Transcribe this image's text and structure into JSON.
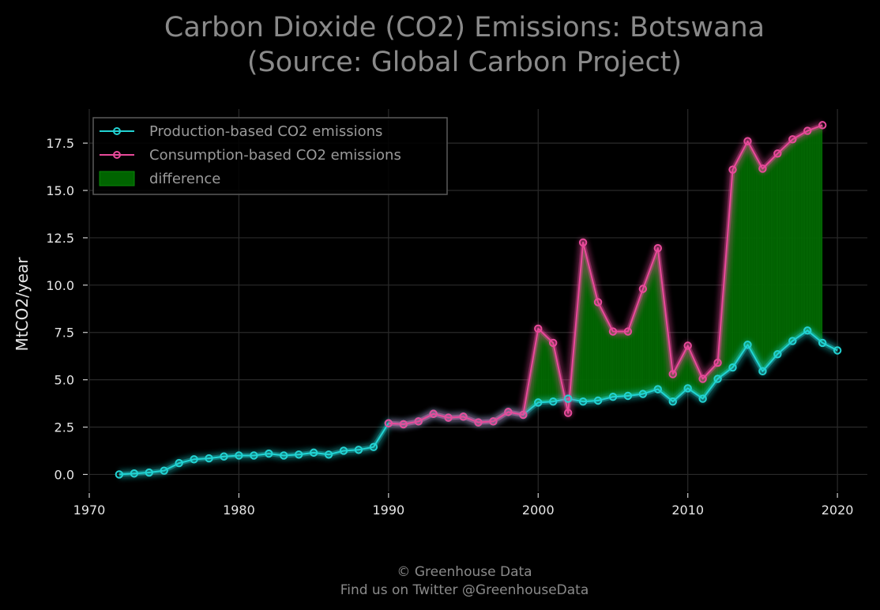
{
  "chart_data": {
    "type": "line",
    "title_line1": "Carbon Dioxide (CO2) Emissions: Botswana",
    "title_line2": "(Source: Global Carbon Project)",
    "xlabel": "",
    "ylabel": "MtCO2/year",
    "xlim": [
      1970,
      2022
    ],
    "ylim": [
      -0.9,
      19.3
    ],
    "xticks": [
      1970,
      1980,
      1990,
      2000,
      2010,
      2020
    ],
    "yticks": [
      0.0,
      2.5,
      5.0,
      7.5,
      10.0,
      12.5,
      15.0,
      17.5
    ],
    "grid": true,
    "legend_position": "top-left",
    "legend": [
      "Production-based CO2 emissions",
      "Consumption-based CO2 emissions",
      "difference"
    ],
    "series": [
      {
        "name": "Production-based CO2 emissions",
        "color": "#22d3d3",
        "x": [
          1972,
          1973,
          1974,
          1975,
          1976,
          1977,
          1978,
          1979,
          1980,
          1981,
          1982,
          1983,
          1984,
          1985,
          1986,
          1987,
          1988,
          1989,
          1990,
          1991,
          1992,
          1993,
          1994,
          1995,
          1996,
          1997,
          1998,
          1999,
          2000,
          2001,
          2002,
          2003,
          2004,
          2005,
          2006,
          2007,
          2008,
          2009,
          2010,
          2011,
          2012,
          2013,
          2014,
          2015,
          2016,
          2017,
          2018,
          2019,
          2020
        ],
        "values": [
          0.0,
          0.05,
          0.1,
          0.2,
          0.6,
          0.8,
          0.85,
          0.95,
          1.0,
          1.0,
          1.1,
          1.0,
          1.05,
          1.15,
          1.05,
          1.25,
          1.3,
          1.45,
          2.7,
          2.65,
          2.8,
          3.2,
          3.0,
          3.05,
          2.75,
          2.8,
          3.3,
          3.15,
          3.8,
          3.85,
          4.0,
          3.85,
          3.9,
          4.1,
          4.15,
          4.25,
          4.5,
          3.85,
          4.55,
          4.0,
          5.05,
          5.65,
          6.85,
          5.45,
          6.35,
          7.05,
          7.6,
          6.95,
          6.55
        ]
      },
      {
        "name": "Consumption-based CO2 emissions",
        "color": "#e84a9a",
        "x": [
          1990,
          1991,
          1992,
          1993,
          1994,
          1995,
          1996,
          1997,
          1998,
          1999,
          2000,
          2001,
          2002,
          2003,
          2004,
          2005,
          2006,
          2007,
          2008,
          2009,
          2010,
          2011,
          2012,
          2013,
          2014,
          2015,
          2016,
          2017,
          2018,
          2019
        ],
        "values": [
          2.7,
          2.65,
          2.8,
          3.2,
          3.0,
          3.05,
          2.75,
          2.8,
          3.3,
          3.15,
          7.7,
          6.95,
          3.25,
          12.25,
          9.1,
          7.55,
          7.55,
          9.8,
          11.95,
          5.3,
          6.8,
          5.05,
          5.9,
          16.1,
          17.6,
          16.15,
          16.95,
          17.7,
          18.15,
          18.45
        ]
      }
    ],
    "difference_color": "#006400"
  },
  "footer": {
    "line1": "© Greenhouse Data",
    "line2": "Find us on Twitter @GreenhouseData"
  }
}
